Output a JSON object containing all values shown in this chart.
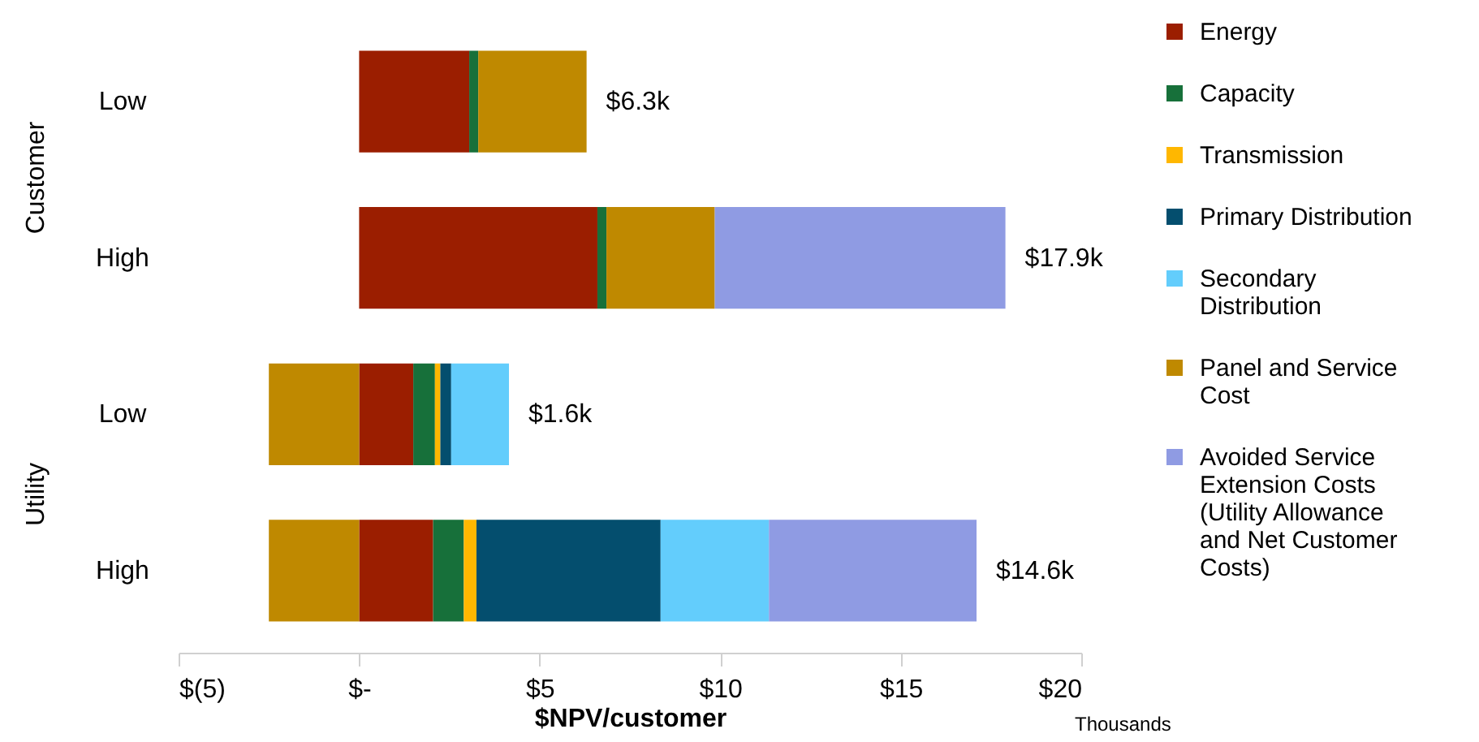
{
  "chart_data": {
    "type": "bar",
    "orientation": "horizontal",
    "stacked": true,
    "xlabel": "$NPV/customer",
    "categories": [
      "Low",
      "High",
      "Low",
      "High"
    ],
    "series": [
      {
        "name": "Energy",
        "color": "#9b1e00",
        "values": [
          3.05,
          6.6,
          1.5,
          2.05
        ]
      },
      {
        "name": "Capacity",
        "color": "#17703a",
        "values": [
          0.25,
          0.25,
          0.6,
          0.85
        ]
      },
      {
        "name": "Transmission",
        "color": "#ffb700",
        "values": [
          null,
          null,
          0.15,
          0.35
        ]
      },
      {
        "name": "Primary Distribution",
        "color": "#044e6e",
        "values": [
          null,
          null,
          0.3,
          5.1
        ]
      },
      {
        "name": "Secondary Distribution",
        "color": "#63cdfc",
        "values": [
          null,
          null,
          1.6,
          3.0
        ]
      },
      {
        "name": "Panel and Service Cost",
        "color": "#bf8900",
        "values": [
          3.0,
          3.0,
          -2.5,
          -2.5
        ]
      },
      {
        "name": "Avoided Service Extension Costs (Utility Allowance and Net Customer Costs)",
        "color": "#8f9be3",
        "values": [
          null,
          8.05,
          null,
          5.75
        ]
      }
    ],
    "totals": [
      "$6.3k",
      "$17.9k",
      "$1.6k",
      "$14.6k"
    ],
    "xlim": [
      -5,
      20
    ],
    "xticks": [
      {
        "value": -5,
        "label": "$(5)"
      },
      {
        "value": 0,
        "label": "$-"
      },
      {
        "value": 5,
        "label": "$5"
      },
      {
        "value": 10,
        "label": "$10"
      },
      {
        "value": 15,
        "label": "$15"
      },
      {
        "value": 20,
        "label": "$20"
      }
    ],
    "annotations": [
      "Customer",
      "Utility",
      "Thousands"
    ],
    "legend": "right",
    "grid": false
  }
}
